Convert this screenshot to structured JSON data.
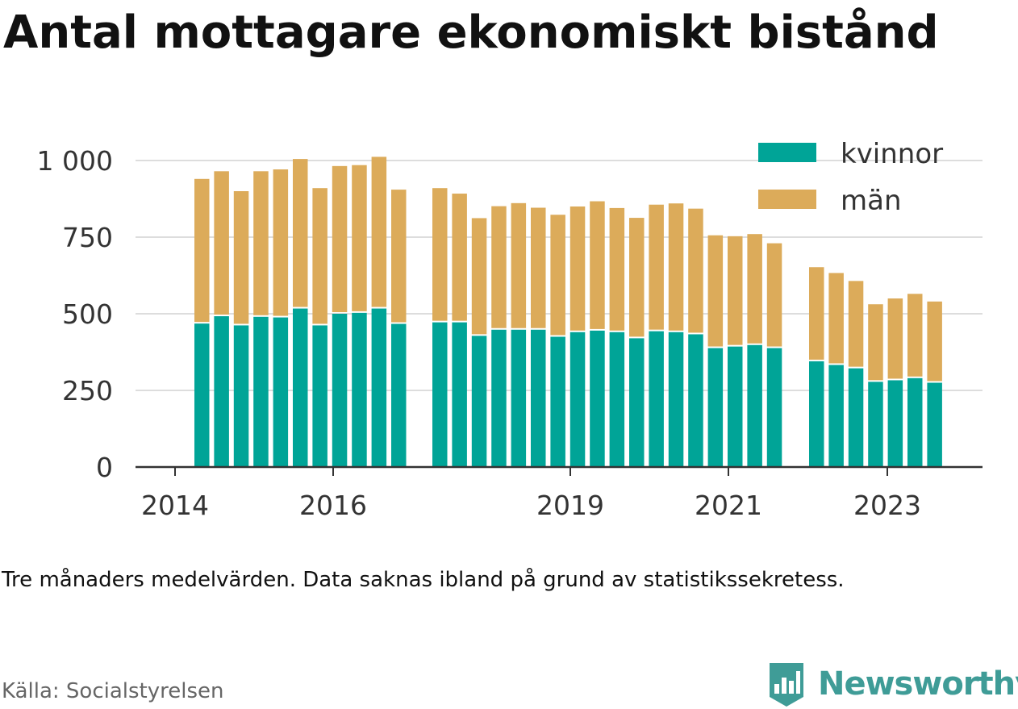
{
  "title": "Antal mottagare ekonomiskt bistånd",
  "note": "Tre månaders medelvärden. Data saknas ibland på grund av statistikssekretess.",
  "source": "Källa: Socialstyrelsen",
  "brand": {
    "name": "Newsworthy",
    "icon": "bar-chart-badge-icon",
    "color": "#3f9c97"
  },
  "chart_data": {
    "type": "bar",
    "stacked": true,
    "title": "",
    "xlabel": "",
    "ylabel": "",
    "ylim": [
      0,
      1000
    ],
    "yticks": [
      0,
      250,
      500,
      750,
      1000
    ],
    "ytick_labels": [
      "0",
      "250",
      "500",
      "750",
      "1 000"
    ],
    "xtick_labels": [
      "2014",
      "2016",
      "2019",
      "2021",
      "2023"
    ],
    "grid": true,
    "legend_position": "top-right",
    "groups": [
      {
        "kvinnor": [
          468,
          492,
          462,
          490,
          488,
          517,
          462,
          500,
          503,
          517,
          467
        ],
        "män": [
          472,
          473,
          438,
          475,
          483,
          488,
          448,
          482,
          482,
          495,
          438
        ]
      },
      {
        "kvinnor": [
          472,
          472,
          428,
          448,
          448,
          448,
          425,
          440,
          445,
          440,
          420,
          443,
          440,
          433,
          388,
          393,
          398,
          388
        ],
        "män": [
          438,
          420,
          384,
          403,
          413,
          398,
          398,
          410,
          422,
          405,
          393,
          413,
          420,
          410,
          368,
          360,
          362,
          342
        ]
      },
      {
        "kvinnor": [
          345,
          333,
          322,
          278,
          283,
          290,
          275
        ],
        "män": [
          307,
          300,
          285,
          253,
          267,
          275,
          265
        ]
      }
    ],
    "series": [
      {
        "name": "kvinnor",
        "color": "#00a497"
      },
      {
        "name": "män",
        "color": "#dcab5a"
      }
    ]
  }
}
